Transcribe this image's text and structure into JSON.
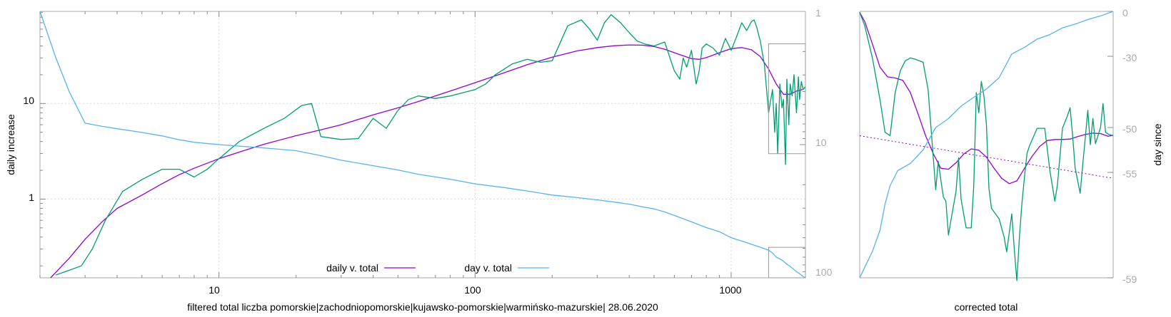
{
  "colors": {
    "magenta": "#9400d3",
    "green": "#009e73",
    "blue": "#56b4e9",
    "axis_gray": "#aaaaaa",
    "tick_gray": "#888888",
    "box_gray": "#999999",
    "grid": "#d8d8d8"
  },
  "chart_data": [
    {
      "type": "line",
      "xlabel": "filtered total liczba pomorskie|zachodniopomorskie|kujawsko-pomorskie|warmińsko-mazurskie| 28.06.2020",
      "ylabel": "daily increase",
      "x_scale": "log",
      "y_scale": "log",
      "y2_scale": "log",
      "y2_reversed": true,
      "xlim": [
        2,
        1950
      ],
      "ylim": [
        0.15,
        92
      ],
      "y2lim": [
        1,
        100
      ],
      "grid": true,
      "legend_position": "bottom-center",
      "x_tick_labels": [
        "10",
        "100",
        "1000"
      ],
      "y_tick_labels": [
        "1",
        "10"
      ],
      "y2_tick_labels": [
        "1",
        "10",
        "100"
      ],
      "series": [
        {
          "name": "daily v. total",
          "axis": "left",
          "color": "#9400d3",
          "x": [
            2.2,
            2.6,
            3,
            3.5,
            4,
            5,
            6,
            7,
            8,
            10,
            12,
            15,
            20,
            25,
            30,
            40,
            50,
            60,
            80,
            100,
            130,
            160,
            200,
            250,
            300,
            350,
            400,
            450,
            500,
            550,
            600,
            650,
            700,
            750,
            800,
            900,
            1000,
            1100,
            1200,
            1300,
            1400,
            1500,
            1600,
            1700,
            1800,
            1900
          ],
          "values": [
            0.15,
            0.24,
            0.38,
            0.58,
            0.8,
            1.1,
            1.45,
            1.8,
            2.1,
            2.65,
            3.1,
            3.75,
            4.6,
            5.3,
            6,
            7.6,
            9,
            10.5,
            13.5,
            16.5,
            21,
            25.5,
            30.5,
            35.5,
            38.5,
            40.2,
            41,
            40.8,
            39.5,
            37,
            34,
            31.5,
            29.5,
            29,
            30.2,
            34,
            37.5,
            38.5,
            36.5,
            31,
            23,
            16,
            12.5,
            12.5,
            13.5,
            14
          ]
        },
        {
          "name": "",
          "axis": "left",
          "color": "#009e73",
          "x": [
            2.3,
            2.6,
            2.9,
            3.2,
            3.6,
            4.2,
            5,
            6,
            7,
            8,
            9,
            10,
            12,
            15,
            18,
            21,
            23,
            25,
            30,
            35,
            40,
            45,
            50,
            55,
            60,
            70,
            80,
            90,
            100,
            110,
            120,
            140,
            160,
            180,
            200,
            230,
            260,
            280,
            300,
            320,
            340,
            370,
            400,
            430,
            460,
            500,
            550,
            600,
            630,
            650,
            670,
            700,
            730,
            750,
            770,
            800,
            850,
            900,
            950,
            1000,
            1050,
            1100,
            1150,
            1200,
            1230,
            1260,
            1300,
            1350,
            1400,
            1450,
            1480,
            1500,
            1520,
            1550,
            1580,
            1600,
            1630,
            1650,
            1680,
            1700,
            1730,
            1760,
            1800,
            1830,
            1850,
            1880,
            1910,
            1950
          ],
          "values": [
            0.16,
            0.18,
            0.2,
            0.3,
            0.6,
            1.2,
            1.6,
            2.05,
            2.05,
            1.7,
            2.05,
            2.65,
            4,
            5.5,
            7,
            9.5,
            10,
            4.5,
            4.2,
            4.3,
            7,
            5.5,
            8.5,
            11,
            12,
            11.3,
            12,
            13,
            14,
            16,
            20,
            26,
            29,
            27,
            28,
            65,
            75,
            60,
            46,
            70,
            85,
            70,
            55,
            45,
            42,
            40,
            44,
            22,
            18,
            30,
            24,
            36,
            16,
            22,
            38,
            42,
            38,
            32,
            48,
            36,
            50,
            70,
            58,
            72,
            75,
            62,
            45,
            25,
            8,
            14,
            5,
            10,
            3,
            16,
            9,
            11,
            2.3,
            18,
            6,
            16,
            12,
            20,
            8,
            19,
            11,
            17,
            14,
            15
          ]
        },
        {
          "name": "day v. total",
          "axis": "right",
          "color": "#56b4e9",
          "x": [
            2,
            2.3,
            2.6,
            3,
            3.5,
            4,
            5,
            6,
            7,
            8,
            10,
            15,
            20,
            25,
            30,
            40,
            50,
            60,
            80,
            100,
            130,
            160,
            200,
            250,
            300,
            350,
            400,
            450,
            500,
            550,
            600,
            700,
            800,
            900,
            1000,
            1100,
            1200,
            1300,
            1400,
            1450,
            1500,
            1550,
            1600,
            1650,
            1700,
            1750,
            1800,
            1850,
            1900,
            1950
          ],
          "values": [
            1,
            2.2,
            4,
            6.9,
            7.3,
            7.6,
            8.1,
            8.6,
            9.2,
            9.6,
            10,
            10.6,
            11.1,
            12.1,
            13.1,
            14.4,
            15.5,
            16.7,
            18.2,
            19.7,
            21,
            22.3,
            23.9,
            25,
            26,
            27,
            28,
            29.3,
            30.4,
            32,
            34,
            38,
            42,
            45,
            50,
            53,
            56,
            59,
            62,
            65,
            70,
            72,
            75,
            79,
            82,
            86,
            90,
            93,
            97,
            100
          ]
        }
      ],
      "inset_boxes": [
        {
          "x_range": [
            1400,
            1950
          ],
          "y2_range": [
            1.75,
            11.7
          ]
        },
        {
          "x_range": [
            1400,
            1950
          ],
          "y2_range": [
            59,
            100
          ]
        }
      ]
    },
    {
      "type": "line",
      "xlabel": "corrected total",
      "y2label": "day since",
      "ylim": [
        0.15,
        92
      ],
      "y_scale": "log",
      "y2lim": [
        0,
        -59
      ],
      "y2_tick_labels": [
        "0",
        "-30",
        "-50",
        "-55",
        "-59"
      ],
      "y2_scale": "nonlinear (printed ticks 0, -30, -50, -55, -59)",
      "grid": false,
      "series": [
        {
          "name": "",
          "axis": "left",
          "color": "#9400d3",
          "x": [
            0,
            0.02,
            0.05,
            0.08,
            0.11,
            0.14,
            0.17,
            0.2,
            0.23,
            0.26,
            0.29,
            0.32,
            0.35,
            0.38,
            0.41,
            0.44,
            0.47,
            0.5,
            0.53,
            0.56,
            0.59,
            0.62,
            0.65,
            0.68,
            0.71,
            0.74,
            0.77,
            0.8,
            0.83,
            0.86,
            0.89,
            0.92,
            0.95,
            0.98,
            1
          ],
          "values": [
            90,
            72,
            42,
            24,
            19,
            18.5,
            17.5,
            13,
            7.8,
            4.6,
            3,
            2.1,
            2.05,
            2.4,
            2.95,
            3.35,
            3.25,
            2.75,
            2.1,
            1.65,
            1.45,
            1.55,
            2.1,
            2.8,
            3.55,
            4.1,
            4.2,
            4.2,
            4.25,
            4.5,
            4.75,
            4.9,
            4.85,
            4.55,
            4.65
          ]
        },
        {
          "name": "",
          "axis": "left",
          "color": "#009e73",
          "x": [
            0,
            0.02,
            0.05,
            0.08,
            0.1,
            0.12,
            0.14,
            0.16,
            0.18,
            0.2,
            0.22,
            0.25,
            0.27,
            0.3,
            0.31,
            0.32,
            0.33,
            0.34,
            0.35,
            0.36,
            0.38,
            0.39,
            0.4,
            0.42,
            0.44,
            0.45,
            0.46,
            0.47,
            0.48,
            0.49,
            0.5,
            0.51,
            0.52,
            0.55,
            0.57,
            0.58,
            0.6,
            0.61,
            0.62,
            0.63,
            0.64,
            0.65,
            0.66,
            0.67,
            0.7,
            0.73,
            0.75,
            0.77,
            0.78,
            0.8,
            0.82,
            0.83,
            0.84,
            0.85,
            0.87,
            0.88,
            0.89,
            0.9,
            0.91,
            0.92,
            0.93,
            0.94,
            0.95,
            0.96,
            0.97,
            0.98,
            1
          ],
          "values": [
            90,
            65,
            30,
            11,
            5,
            4.6,
            13,
            22,
            28,
            30,
            29,
            27,
            14,
            1.25,
            2.5,
            1.6,
            1.05,
            0.95,
            0.42,
            0.6,
            1.2,
            2.7,
            1.0,
            0.5,
            0.5,
            1.4,
            13,
            8,
            17,
            12,
            6,
            1.3,
            0.8,
            0.62,
            0.4,
            0.28,
            0.7,
            0.3,
            0.14,
            0.4,
            0.9,
            1.7,
            3,
            3.6,
            5.5,
            5.5,
            2,
            0.95,
            1.4,
            5.5,
            7.5,
            9,
            4.6,
            2.1,
            1.15,
            2.3,
            4.4,
            8.5,
            3.7,
            7,
            3.8,
            4.6,
            5.6,
            10,
            5,
            4.8,
            4.6
          ]
        },
        {
          "name": "",
          "axis": "right",
          "color": "#56b4e9",
          "x": [
            0,
            0.02,
            0.05,
            0.08,
            0.1,
            0.12,
            0.15,
            0.2,
            0.25,
            0.3,
            0.35,
            0.4,
            0.45,
            0.5,
            0.55,
            0.6,
            0.65,
            0.7,
            0.75,
            0.8,
            0.85,
            0.9,
            0.95,
            1
          ],
          "values": [
            -59,
            -58.6,
            -58,
            -57.2,
            -56.2,
            -55.5,
            -54.8,
            -54,
            -52.5,
            -50,
            -47.5,
            -44,
            -41.5,
            -39.2,
            -36,
            -28.5,
            -24,
            -18.5,
            -15.5,
            -11,
            -8.5,
            -5.5,
            -3,
            0
          ]
        },
        {
          "name": "",
          "axis": "left",
          "color": "#9400d3",
          "dashed": true,
          "x": [
            0,
            1
          ],
          "values": [
            4.6,
            1.65
          ]
        }
      ]
    }
  ]
}
